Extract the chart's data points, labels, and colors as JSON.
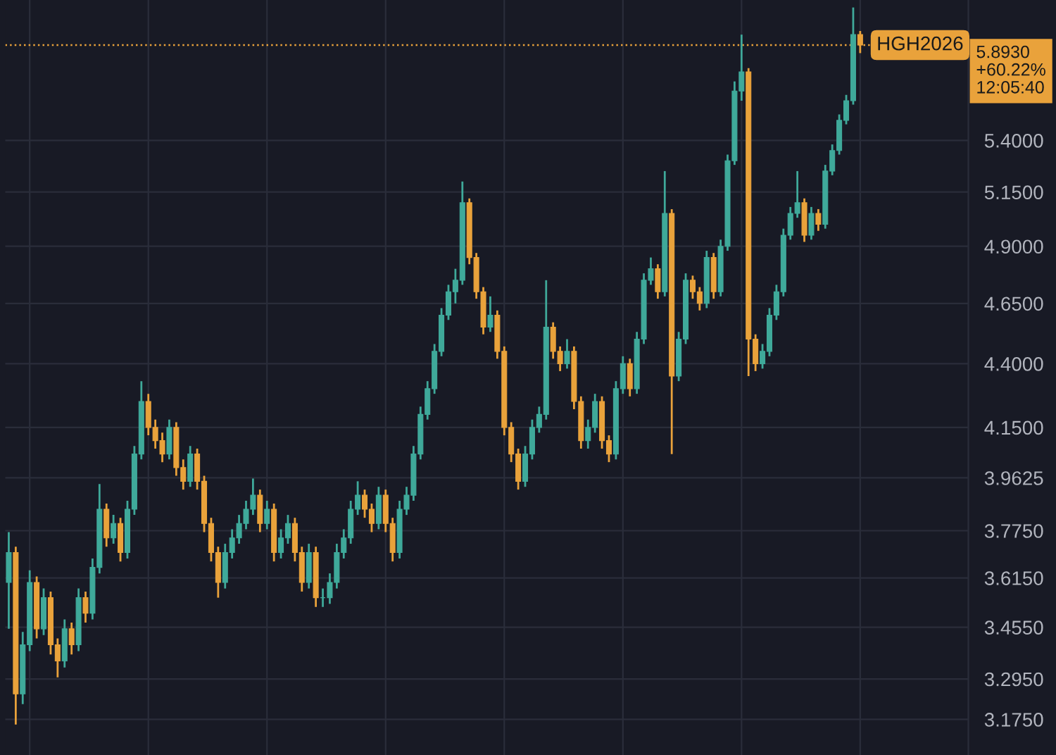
{
  "chart_data": {
    "type": "candlestick",
    "categories": [
      null,
      null,
      null,
      null,
      null,
      null,
      null,
      null,
      null,
      null,
      null,
      null,
      null,
      null,
      null,
      null,
      null,
      null,
      null,
      null,
      null,
      null,
      null,
      null,
      null,
      null,
      null,
      null,
      null,
      null,
      null,
      null,
      null,
      null,
      null,
      null,
      null,
      null,
      null,
      null,
      null,
      null,
      null,
      null,
      null,
      null,
      null,
      null,
      null,
      null,
      null,
      null,
      null,
      null,
      null,
      null,
      null,
      null,
      null,
      null,
      null,
      null,
      null,
      null,
      null,
      null,
      null,
      null,
      null,
      null,
      null,
      null,
      null,
      null,
      null,
      null,
      null,
      null,
      null,
      null,
      null,
      null,
      null,
      null,
      null,
      null,
      null,
      null,
      null,
      null,
      null,
      null,
      null,
      null,
      null,
      null,
      null,
      null,
      null,
      null,
      null,
      null,
      null,
      null,
      null,
      null,
      null,
      null,
      null,
      null,
      null,
      null,
      null,
      null,
      null,
      null,
      null,
      null,
      null,
      null,
      null,
      null,
      null,
      null,
      null,
      null,
      null,
      null,
      null,
      null,
      null,
      null,
      null,
      null,
      null,
      null,
      null,
      null
    ],
    "ohlc": [
      [
        3.6,
        3.77,
        3.45,
        3.7
      ],
      [
        3.7,
        3.72,
        3.16,
        3.25
      ],
      [
        3.25,
        3.44,
        3.22,
        3.4
      ],
      [
        3.4,
        3.64,
        3.38,
        3.6
      ],
      [
        3.6,
        3.62,
        3.42,
        3.45
      ],
      [
        3.45,
        3.58,
        3.43,
        3.55
      ],
      [
        3.55,
        3.57,
        3.37,
        3.4
      ],
      [
        3.4,
        3.42,
        3.3,
        3.35
      ],
      [
        3.35,
        3.48,
        3.33,
        3.45
      ],
      [
        3.45,
        3.47,
        3.37,
        3.4
      ],
      [
        3.4,
        3.58,
        3.38,
        3.55
      ],
      [
        3.55,
        3.57,
        3.47,
        3.5
      ],
      [
        3.5,
        3.68,
        3.48,
        3.65
      ],
      [
        3.65,
        3.94,
        3.63,
        3.85
      ],
      [
        3.85,
        3.87,
        3.72,
        3.75
      ],
      [
        3.75,
        3.83,
        3.73,
        3.8
      ],
      [
        3.8,
        3.82,
        3.67,
        3.7
      ],
      [
        3.7,
        3.88,
        3.68,
        3.85
      ],
      [
        3.85,
        4.08,
        3.83,
        4.05
      ],
      [
        4.05,
        4.33,
        4.03,
        4.25
      ],
      [
        4.25,
        4.28,
        4.12,
        4.15
      ],
      [
        4.15,
        4.18,
        4.07,
        4.1
      ],
      [
        4.1,
        4.13,
        4.02,
        4.05
      ],
      [
        4.05,
        4.18,
        4.03,
        4.15
      ],
      [
        4.15,
        4.17,
        3.97,
        4.0
      ],
      [
        4.0,
        4.03,
        3.92,
        3.95
      ],
      [
        3.95,
        4.08,
        3.93,
        4.05
      ],
      [
        4.05,
        4.07,
        3.92,
        3.95
      ],
      [
        3.95,
        3.97,
        3.77,
        3.8
      ],
      [
        3.8,
        3.82,
        3.67,
        3.7
      ],
      [
        3.7,
        3.72,
        3.55,
        3.6
      ],
      [
        3.6,
        3.73,
        3.58,
        3.7
      ],
      [
        3.7,
        3.78,
        3.68,
        3.75
      ],
      [
        3.75,
        3.83,
        3.73,
        3.8
      ],
      [
        3.8,
        3.88,
        3.78,
        3.85
      ],
      [
        3.85,
        3.96,
        3.83,
        3.9
      ],
      [
        3.9,
        3.92,
        3.77,
        3.8
      ],
      [
        3.8,
        3.88,
        3.78,
        3.85
      ],
      [
        3.85,
        3.87,
        3.67,
        3.7
      ],
      [
        3.7,
        3.78,
        3.68,
        3.75
      ],
      [
        3.75,
        3.83,
        3.73,
        3.8
      ],
      [
        3.8,
        3.82,
        3.67,
        3.7
      ],
      [
        3.7,
        3.72,
        3.57,
        3.6
      ],
      [
        3.6,
        3.73,
        3.58,
        3.7
      ],
      [
        3.7,
        3.72,
        3.52,
        3.55
      ],
      [
        3.55,
        3.58,
        3.52,
        3.55
      ],
      [
        3.55,
        3.63,
        3.53,
        3.6
      ],
      [
        3.6,
        3.73,
        3.58,
        3.7
      ],
      [
        3.7,
        3.78,
        3.68,
        3.75
      ],
      [
        3.75,
        3.88,
        3.73,
        3.85
      ],
      [
        3.85,
        3.95,
        3.83,
        3.9
      ],
      [
        3.9,
        3.92,
        3.82,
        3.85
      ],
      [
        3.85,
        3.87,
        3.77,
        3.8
      ],
      [
        3.8,
        3.93,
        3.78,
        3.9
      ],
      [
        3.9,
        3.92,
        3.77,
        3.8
      ],
      [
        3.8,
        3.82,
        3.67,
        3.7
      ],
      [
        3.7,
        3.88,
        3.68,
        3.85
      ],
      [
        3.85,
        3.93,
        3.83,
        3.9
      ],
      [
        3.9,
        4.08,
        3.88,
        4.05
      ],
      [
        4.05,
        4.23,
        4.03,
        4.2
      ],
      [
        4.2,
        4.33,
        4.18,
        4.3
      ],
      [
        4.3,
        4.48,
        4.28,
        4.45
      ],
      [
        4.45,
        4.63,
        4.43,
        4.6
      ],
      [
        4.6,
        4.73,
        4.58,
        4.7
      ],
      [
        4.7,
        4.8,
        4.65,
        4.75
      ],
      [
        4.75,
        5.2,
        4.73,
        5.1
      ],
      [
        5.1,
        5.12,
        4.82,
        4.85
      ],
      [
        4.85,
        4.87,
        4.67,
        4.7
      ],
      [
        4.7,
        4.72,
        4.52,
        4.55
      ],
      [
        4.55,
        4.68,
        4.53,
        4.6
      ],
      [
        4.6,
        4.62,
        4.42,
        4.45
      ],
      [
        4.45,
        4.47,
        4.12,
        4.15
      ],
      [
        4.15,
        4.17,
        4.02,
        4.05
      ],
      [
        4.05,
        4.07,
        3.92,
        3.95
      ],
      [
        3.95,
        4.08,
        3.93,
        4.05
      ],
      [
        4.05,
        4.18,
        4.03,
        4.15
      ],
      [
        4.15,
        4.23,
        4.13,
        4.2
      ],
      [
        4.2,
        4.75,
        4.18,
        4.55
      ],
      [
        4.55,
        4.57,
        4.42,
        4.45
      ],
      [
        4.45,
        4.47,
        4.37,
        4.4
      ],
      [
        4.4,
        4.5,
        4.38,
        4.45
      ],
      [
        4.45,
        4.47,
        4.22,
        4.25
      ],
      [
        4.25,
        4.27,
        4.07,
        4.1
      ],
      [
        4.1,
        4.18,
        4.07,
        4.15
      ],
      [
        4.15,
        4.28,
        4.13,
        4.25
      ],
      [
        4.25,
        4.27,
        4.07,
        4.1
      ],
      [
        4.1,
        4.12,
        4.02,
        4.05
      ],
      [
        4.05,
        4.33,
        4.03,
        4.3
      ],
      [
        4.3,
        4.43,
        4.28,
        4.4
      ],
      [
        4.4,
        4.42,
        4.27,
        4.3
      ],
      [
        4.3,
        4.53,
        4.28,
        4.5
      ],
      [
        4.5,
        4.78,
        4.48,
        4.75
      ],
      [
        4.75,
        4.85,
        4.73,
        4.8
      ],
      [
        4.8,
        4.82,
        4.67,
        4.7
      ],
      [
        4.7,
        5.25,
        4.68,
        5.05
      ],
      [
        5.05,
        5.07,
        4.05,
        4.35
      ],
      [
        4.35,
        4.53,
        4.33,
        4.5
      ],
      [
        4.5,
        4.78,
        4.48,
        4.75
      ],
      [
        4.75,
        4.77,
        4.67,
        4.7
      ],
      [
        4.7,
        4.72,
        4.62,
        4.65
      ],
      [
        4.65,
        4.88,
        4.63,
        4.85
      ],
      [
        4.85,
        4.87,
        4.67,
        4.7
      ],
      [
        4.7,
        4.93,
        4.68,
        4.9
      ],
      [
        4.9,
        5.33,
        4.88,
        5.3
      ],
      [
        5.3,
        5.7,
        5.28,
        5.65
      ],
      [
        5.65,
        5.95,
        5.6,
        5.75
      ],
      [
        5.75,
        5.77,
        4.35,
        4.5
      ],
      [
        4.5,
        4.52,
        4.37,
        4.4
      ],
      [
        4.4,
        4.48,
        4.38,
        4.45
      ],
      [
        4.45,
        4.63,
        4.43,
        4.6
      ],
      [
        4.6,
        4.73,
        4.58,
        4.7
      ],
      [
        4.7,
        4.98,
        4.68,
        4.95
      ],
      [
        4.95,
        5.08,
        4.93,
        5.05
      ],
      [
        5.05,
        5.25,
        5.03,
        5.1
      ],
      [
        5.1,
        5.12,
        4.92,
        4.95
      ],
      [
        4.95,
        5.08,
        4.93,
        5.05
      ],
      [
        5.05,
        5.07,
        4.97,
        5.0
      ],
      [
        5.0,
        5.28,
        4.98,
        5.25
      ],
      [
        5.25,
        5.38,
        5.23,
        5.35
      ],
      [
        5.35,
        5.53,
        5.33,
        5.5
      ],
      [
        5.5,
        5.63,
        5.48,
        5.6
      ],
      [
        5.6,
        6.1,
        5.58,
        5.95
      ],
      [
        5.95,
        5.97,
        5.85,
        5.893
      ],
      null,
      null,
      null,
      null,
      null,
      null,
      null,
      null,
      null,
      null,
      null,
      null,
      null,
      null,
      null
    ],
    "colors": [
      "#3fa99a",
      "#e9a23b",
      "#3fa99a",
      "#3fa99a",
      "#e9a23b",
      "#3fa99a",
      "#e9a23b",
      "#e9a23b",
      "#3fa99a",
      "#e9a23b",
      "#3fa99a",
      "#e9a23b",
      "#3fa99a",
      "#3fa99a",
      "#e9a23b",
      "#3fa99a",
      "#e9a23b",
      "#3fa99a",
      "#3fa99a",
      "#3fa99a",
      "#e9a23b",
      "#e9a23b",
      "#e9a23b",
      "#3fa99a",
      "#e9a23b",
      "#e9a23b",
      "#3fa99a",
      "#e9a23b",
      "#e9a23b",
      "#e9a23b",
      "#e9a23b",
      "#3fa99a",
      "#3fa99a",
      "#3fa99a",
      "#3fa99a",
      "#3fa99a",
      "#e9a23b",
      "#3fa99a",
      "#e9a23b",
      "#3fa99a",
      "#3fa99a",
      "#e9a23b",
      "#e9a23b",
      "#3fa99a",
      "#e9a23b",
      "#3fa99a",
      "#3fa99a",
      "#3fa99a",
      "#3fa99a",
      "#3fa99a",
      "#3fa99a",
      "#e9a23b",
      "#e9a23b",
      "#3fa99a",
      "#e9a23b",
      "#e9a23b",
      "#3fa99a",
      "#3fa99a",
      "#3fa99a",
      "#3fa99a",
      "#3fa99a",
      "#3fa99a",
      "#3fa99a",
      "#3fa99a",
      "#3fa99a",
      "#3fa99a",
      "#e9a23b",
      "#e9a23b",
      "#e9a23b",
      "#3fa99a",
      "#e9a23b",
      "#e9a23b",
      "#e9a23b",
      "#e9a23b",
      "#3fa99a",
      "#3fa99a",
      "#3fa99a",
      "#3fa99a",
      "#e9a23b",
      "#e9a23b",
      "#3fa99a",
      "#e9a23b",
      "#e9a23b",
      "#3fa99a",
      "#3fa99a",
      "#e9a23b",
      "#e9a23b",
      "#3fa99a",
      "#3fa99a",
      "#e9a23b",
      "#3fa99a",
      "#3fa99a",
      "#3fa99a",
      "#e9a23b",
      "#3fa99a",
      "#e9a23b",
      "#3fa99a",
      "#3fa99a",
      "#e9a23b",
      "#e9a23b",
      "#3fa99a",
      "#e9a23b",
      "#3fa99a",
      "#3fa99a",
      "#3fa99a",
      "#3fa99a",
      "#e9a23b",
      "#e9a23b",
      "#3fa99a",
      "#3fa99a",
      "#3fa99a",
      "#3fa99a",
      "#3fa99a",
      "#3fa99a",
      "#e9a23b",
      "#3fa99a",
      "#e9a23b",
      "#3fa99a",
      "#3fa99a",
      "#3fa99a",
      "#3fa99a",
      "#3fa99a",
      "#e9a23b",
      null,
      null,
      null,
      null,
      null,
      null,
      null,
      null,
      null,
      null,
      null,
      null,
      null,
      null,
      null
    ],
    "log": "y",
    "ylim": [
      3.073,
      6.142
    ],
    "yticks": [
      {
        "value": 3.175,
        "label": "3.1750"
      },
      {
        "value": 3.295,
        "label": "3.2950"
      },
      {
        "value": 3.455,
        "label": "3.4550"
      },
      {
        "value": 3.615,
        "label": "3.6150"
      },
      {
        "value": 3.775,
        "label": "3.7750"
      },
      {
        "value": 3.9625,
        "label": "3.9625"
      },
      {
        "value": 4.15,
        "label": "4.1500"
      },
      {
        "value": 4.4,
        "label": "4.4000"
      },
      {
        "value": 4.65,
        "label": "4.6500"
      },
      {
        "value": 4.9,
        "label": "4.9000"
      },
      {
        "value": 5.15,
        "label": "5.1500"
      },
      {
        "value": 5.4,
        "label": "5.4000"
      }
    ],
    "tick_labels": "y",
    "grid": true,
    "ref_lines": [
      {
        "axis": "y",
        "value": 5.893,
        "label": "HGH2026",
        "color": "#e9a23b",
        "line_style": "dotted"
      }
    ],
    "annotations": [
      "5.8930\n+60.22%\n12:05:40"
    ]
  }
}
